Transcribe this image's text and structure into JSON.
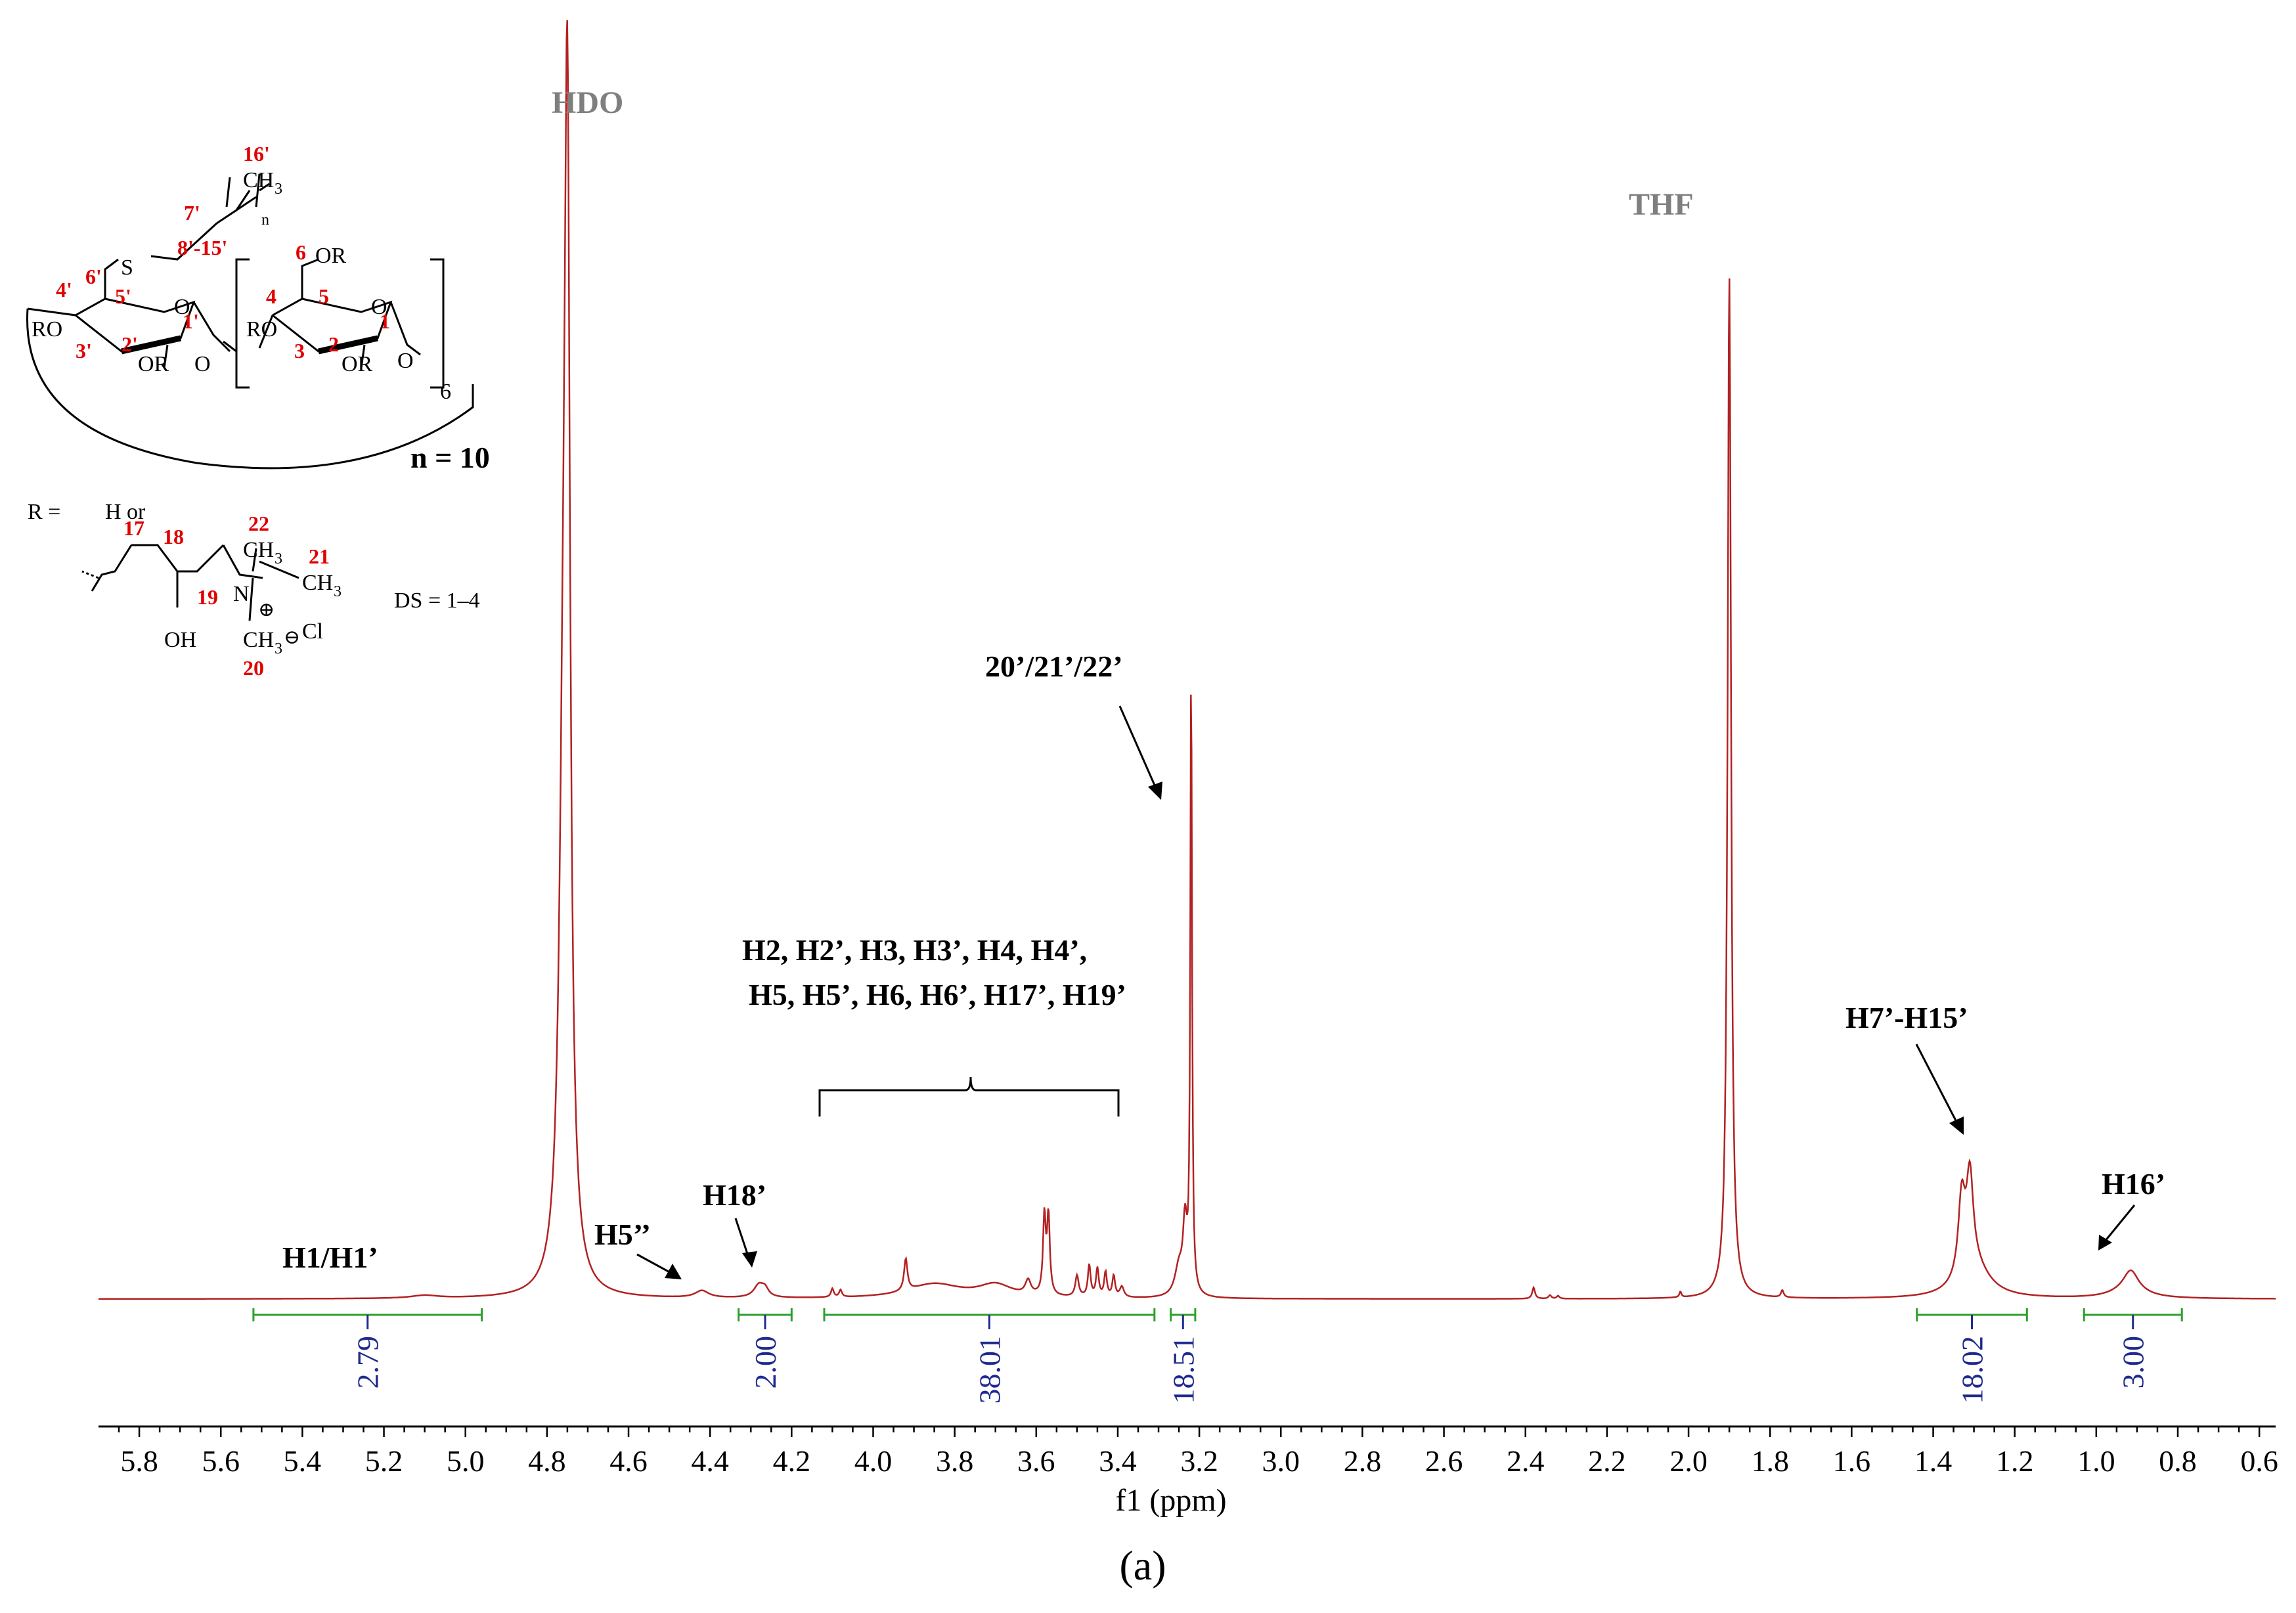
{
  "chart_data": {
    "type": "line",
    "xlabel": "f1 (ppm)",
    "xlim": [
      5.9,
      0.56
    ],
    "x_ticks": [
      "5.8",
      "5.6",
      "5.4",
      "5.2",
      "5.0",
      "4.8",
      "4.6",
      "4.4",
      "4.2",
      "4.0",
      "3.8",
      "3.6",
      "3.4",
      "3.2",
      "3.0",
      "2.8",
      "2.6",
      "2.4",
      "2.2",
      "2.0",
      "1.8",
      "1.6",
      "1.4",
      "1.2",
      "1.0",
      "0.8",
      "0.6"
    ],
    "line_color": "#b22222",
    "integral_color": "#2ca02c",
    "integral_value_color": "#1f2a8f",
    "peaks": [
      {
        "ppm": 4.75,
        "height": 1.45,
        "width": 0.008
      },
      {
        "ppm": 4.76,
        "height": 0.6,
        "width": 0.012
      },
      {
        "ppm": 1.9,
        "height": 1.45,
        "width": 0.005
      },
      {
        "ppm": 3.22,
        "height": 0.88,
        "width": 0.0025
      },
      {
        "ppm": 3.235,
        "height": 0.095,
        "width": 0.006
      },
      {
        "ppm": 3.25,
        "height": 0.04,
        "width": 0.012
      },
      {
        "ppm": 1.33,
        "height": 0.11,
        "width": 0.01
      },
      {
        "ppm": 1.31,
        "height": 0.13,
        "width": 0.01
      },
      {
        "ppm": 1.3,
        "height": 0.045,
        "width": 0.045
      },
      {
        "ppm": 0.915,
        "height": 0.028,
        "width": 0.022
      },
      {
        "ppm": 0.92,
        "height": 0.012,
        "width": 0.05
      },
      {
        "ppm": 4.42,
        "height": 0.01,
        "width": 0.02
      },
      {
        "ppm": 4.28,
        "height": 0.018,
        "width": 0.015
      },
      {
        "ppm": 4.265,
        "height": 0.01,
        "width": 0.01
      },
      {
        "ppm": 5.1,
        "height": 0.004,
        "width": 0.04
      },
      {
        "ppm": 3.92,
        "height": 0.045,
        "width": 0.005
      },
      {
        "ppm": 3.85,
        "height": 0.02,
        "width": 0.08
      },
      {
        "ppm": 3.7,
        "height": 0.018,
        "width": 0.05
      },
      {
        "ppm": 3.62,
        "height": 0.02,
        "width": 0.008
      },
      {
        "ppm": 3.58,
        "height": 0.11,
        "width": 0.004
      },
      {
        "ppm": 3.57,
        "height": 0.11,
        "width": 0.004
      },
      {
        "ppm": 3.5,
        "height": 0.03,
        "width": 0.005
      },
      {
        "ppm": 3.47,
        "height": 0.045,
        "width": 0.004
      },
      {
        "ppm": 3.45,
        "height": 0.04,
        "width": 0.004
      },
      {
        "ppm": 3.43,
        "height": 0.035,
        "width": 0.004
      },
      {
        "ppm": 3.41,
        "height": 0.03,
        "width": 0.004
      },
      {
        "ppm": 3.39,
        "height": 0.015,
        "width": 0.006
      },
      {
        "ppm": 4.1,
        "height": 0.012,
        "width": 0.004
      },
      {
        "ppm": 4.08,
        "height": 0.01,
        "width": 0.004
      },
      {
        "ppm": 2.38,
        "height": 0.016,
        "width": 0.004
      },
      {
        "ppm": 2.34,
        "height": 0.005,
        "width": 0.004
      },
      {
        "ppm": 2.32,
        "height": 0.004,
        "width": 0.004
      },
      {
        "ppm": 2.02,
        "height": 0.008,
        "width": 0.003
      },
      {
        "ppm": 1.77,
        "height": 0.01,
        "width": 0.004
      }
    ],
    "integrals": [
      {
        "from": 5.52,
        "to": 4.96,
        "value": "2.79"
      },
      {
        "from": 4.33,
        "to": 4.2,
        "value": "2.00"
      },
      {
        "from": 4.12,
        "to": 3.31,
        "value": "38.01"
      },
      {
        "from": 3.27,
        "to": 3.21,
        "value": "18.51"
      },
      {
        "from": 1.44,
        "to": 1.17,
        "value": "18.02"
      },
      {
        "from": 1.03,
        "to": 0.79,
        "value": "3.00"
      }
    ]
  },
  "annotations": {
    "hdo": "HDO",
    "thf": "THF",
    "h1": "H1/H1’",
    "h5pp": "H5’’",
    "h18": "H18’",
    "methyls": "20’/21’/22’",
    "sugar_line1": "H2, H2’, H3, H3’, H4, H4’,",
    "sugar_line2": "H5, H5’, H6, H6’, H17’, H19’",
    "h7_15": "H7’-H15’",
    "h16": "H16’"
  },
  "structure": {
    "n_label": "n = 10",
    "r_label": "R =",
    "h_or": "H or",
    "ds_label": "DS = 1–4",
    "repeat": "6",
    "s": "S",
    "o": "O",
    "or": "OR",
    "ro": "RO",
    "ch3": "CH",
    "three": "3",
    "n_sub": "n",
    "n_atom": "N",
    "cl": "Cl",
    "oh": "OH",
    "plus": "⊕",
    "minus": "⊖",
    "nums": {
      "c16": "16'",
      "c7": "7'",
      "c8_15": "8'-15'",
      "c6p": "6'",
      "c5p": "5'",
      "c4p": "4'",
      "c3p": "3'",
      "c2p": "2'",
      "c1p": "1'",
      "c6": "6",
      "c5": "5",
      "c4": "4",
      "c3": "3",
      "c2": "2",
      "c1": "1",
      "c22": "22",
      "c21": "21",
      "c17": "17",
      "c18": "18",
      "c19": "19",
      "c20": "20"
    }
  },
  "caption": "(a)"
}
